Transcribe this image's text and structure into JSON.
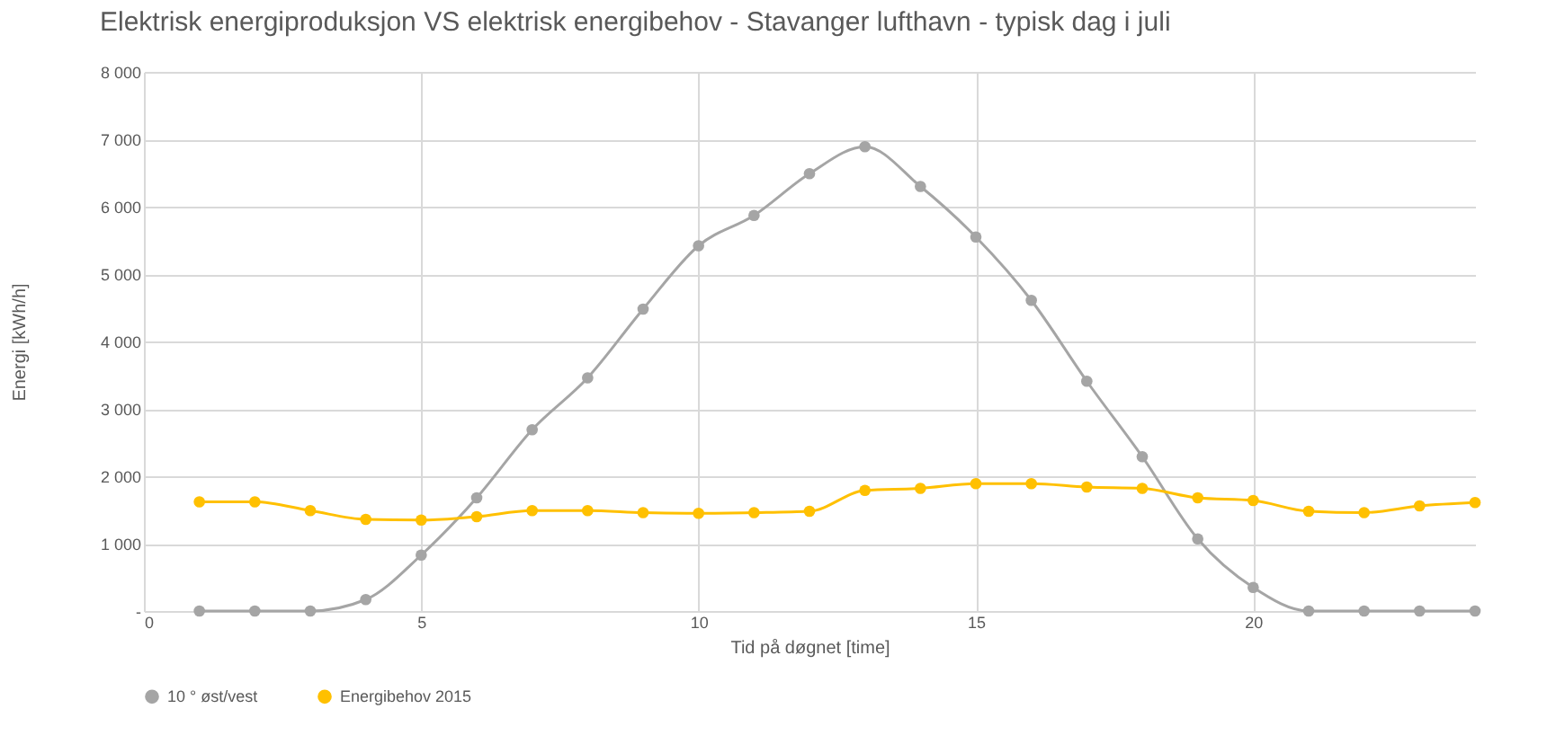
{
  "chart_data": {
    "type": "line",
    "title": "Elektrisk energiproduksjon VS elektrisk energibehov - Stavanger lufthavn - typisk dag i juli",
    "xlabel": "Tid på døgnet [time]",
    "ylabel": "Energi [kWh/h]",
    "x": [
      1,
      2,
      3,
      4,
      5,
      6,
      7,
      8,
      9,
      10,
      11,
      12,
      13,
      14,
      15,
      16,
      17,
      18,
      19,
      20,
      21,
      22,
      23,
      24
    ],
    "series": [
      {
        "name": "10 ° øst/vest",
        "color": "#a5a5a5",
        "values": [
          0,
          0,
          0,
          170,
          830,
          1680,
          2690,
          3460,
          4480,
          5420,
          5870,
          6490,
          6890,
          6300,
          5550,
          4610,
          3410,
          2290,
          1070,
          350,
          0,
          0,
          0,
          0
        ]
      },
      {
        "name": "Energibehov  2015",
        "color": "#ffc000",
        "values": [
          1620,
          1620,
          1490,
          1360,
          1350,
          1400,
          1490,
          1490,
          1460,
          1450,
          1460,
          1480,
          1790,
          1820,
          1890,
          1890,
          1840,
          1820,
          1680,
          1640,
          1480,
          1460,
          1560,
          1610
        ]
      }
    ],
    "xlim": [
      0,
      24
    ],
    "xticks": [
      0,
      5,
      10,
      15,
      20
    ],
    "ylim": [
      0,
      8000
    ],
    "yticks": [
      {
        "value": 0,
        "label": "-"
      },
      {
        "value": 1000,
        "label": "1 000"
      },
      {
        "value": 2000,
        "label": "2 000"
      },
      {
        "value": 3000,
        "label": "3 000"
      },
      {
        "value": 4000,
        "label": "4 000"
      },
      {
        "value": 5000,
        "label": "5 000"
      },
      {
        "value": 6000,
        "label": "6 000"
      },
      {
        "value": 7000,
        "label": "7 000"
      },
      {
        "value": 8000,
        "label": "8 000"
      }
    ],
    "grid": true,
    "legend": "bottom",
    "marker": "circle",
    "line_style": "solid"
  }
}
